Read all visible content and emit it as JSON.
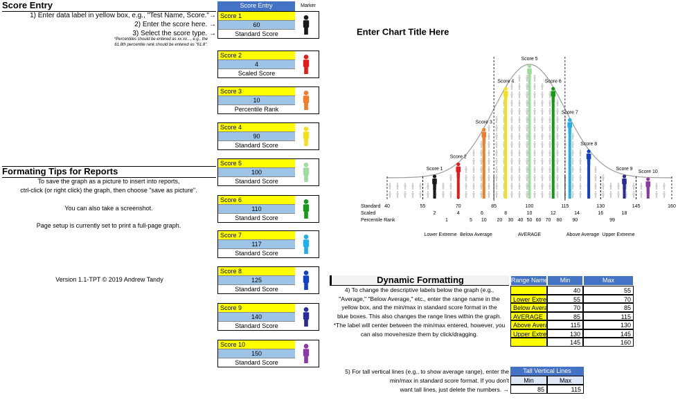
{
  "score_entry": {
    "title": "Score Entry",
    "column_headers": [
      "Score Entry",
      "Marker"
    ],
    "instructions": [
      "1) Enter data label in yellow box, e.g., \"Test Name, Score.\"→",
      "2) Enter the score here. →",
      "3) Select the score type. →"
    ],
    "note": [
      "*Percentiles should be entered as xx.xx..., e.g., the",
      "61.8th percentile rank should be entered as \"61.8\"."
    ],
    "scores": [
      {
        "name": "Score 1",
        "value": 60,
        "type": "Standard Score",
        "color": "#1a1a1a"
      },
      {
        "name": "Score 2",
        "value": 4,
        "type": "Scaled Score",
        "color": "#e31b1b"
      },
      {
        "name": "Score 3",
        "value": 10,
        "type": "Percentile Rank",
        "color": "#f07d2a"
      },
      {
        "name": "Score 4",
        "value": 90,
        "type": "Standard Score",
        "color": "#f3e01c"
      },
      {
        "name": "Score 5",
        "value": 100,
        "type": "Standard Score",
        "color": "#9fdca0"
      },
      {
        "name": "Score 6",
        "value": 110,
        "type": "Standard Score",
        "color": "#17991a"
      },
      {
        "name": "Score 7",
        "value": 117,
        "type": "Standard Score",
        "color": "#1fb0e8"
      },
      {
        "name": "Score 8",
        "value": 125,
        "type": "Standard Score",
        "color": "#1241c4"
      },
      {
        "name": "Score 9",
        "value": 140,
        "type": "Standard Score",
        "color": "#2b2b96"
      },
      {
        "name": "Score 10",
        "value": 150,
        "type": "Standard Score",
        "color": "#8a3aa8"
      }
    ]
  },
  "formatting_tips": {
    "title": "Formating Tips for Reports",
    "lines": [
      "To save the graph as a picture to insert into reports,",
      "ctrl-click (or right click) the graph, then choose \"save as picture\".",
      "You can also take a screenshot.",
      "Page setup is currently set to print a full-page graph."
    ],
    "version": "Version 1.1-TPT © 2019 Andrew Tandy"
  },
  "chart_data": {
    "type": "scatter",
    "title": "Enter Chart Title Here",
    "x": [
      60,
      70,
      80.8,
      90,
      100,
      110,
      117,
      125,
      140,
      150
    ],
    "xlim": [
      40,
      160
    ],
    "xticks": [
      40,
      55,
      70,
      85,
      100,
      115,
      130,
      145,
      160
    ],
    "row_labels": [
      "Standard",
      "Scaled",
      "Percentile Rank"
    ],
    "scaled_ticks": [
      {
        "value": 60,
        "label": "2"
      },
      {
        "value": 70,
        "label": "4"
      },
      {
        "value": 80,
        "label": "6"
      },
      {
        "value": 90,
        "label": "8"
      },
      {
        "value": 100,
        "label": "10"
      },
      {
        "value": 110,
        "label": "12"
      },
      {
        "value": 120,
        "label": "14"
      },
      {
        "value": 130,
        "label": "16"
      },
      {
        "value": 140,
        "label": "18"
      }
    ],
    "percentile_ticks": [
      {
        "value": 65.1,
        "label": "1"
      },
      {
        "value": 75.3,
        "label": "5"
      },
      {
        "value": 80.8,
        "label": "10"
      },
      {
        "value": 87.4,
        "label": "20"
      },
      {
        "value": 92.1,
        "label": "30"
      },
      {
        "value": 96.2,
        "label": "40"
      },
      {
        "value": 100,
        "label": "50"
      },
      {
        "value": 103.8,
        "label": "60"
      },
      {
        "value": 107.9,
        "label": "70"
      },
      {
        "value": 112.6,
        "label": "80"
      },
      {
        "value": 119.2,
        "label": "90"
      },
      {
        "value": 134.9,
        "label": "99"
      }
    ]
  },
  "dynamic_formatting": {
    "title": "Dynamic Formatting",
    "notes": [
      "4) To change the descriptive labels below the graph  (e.g.,",
      "\"Average,\" \"Below Average,\" etc., enter the range name in the",
      "yellow box, and the min/max in standard score format in the",
      "blue boxes.  This also changes the range lines within the graph.",
      "*The label will center between the min/max entered, however, you",
      "can also move/resize them by click/dragging."
    ],
    "headers": [
      "Range Name",
      "Min",
      "Max"
    ],
    "rows": [
      [
        null,
        40,
        55
      ],
      [
        "Lower Extreme",
        55,
        70
      ],
      [
        "Below Average",
        70,
        85
      ],
      [
        "AVERAGE",
        85,
        115
      ],
      [
        "Above Average",
        115,
        130
      ],
      [
        "Upper Extreme",
        130,
        145
      ],
      [
        null,
        145,
        160
      ]
    ]
  },
  "tall_lines": {
    "notes": [
      "5) For tall vertical lines (e.g., to show average range), enter the",
      "min/max in standard score format.  If you don't",
      "want tall lines, just delete the numbers. →"
    ],
    "title": "Tall Vertical Lines",
    "headers": [
      "Min",
      "Max"
    ],
    "values": [
      85,
      115
    ]
  }
}
